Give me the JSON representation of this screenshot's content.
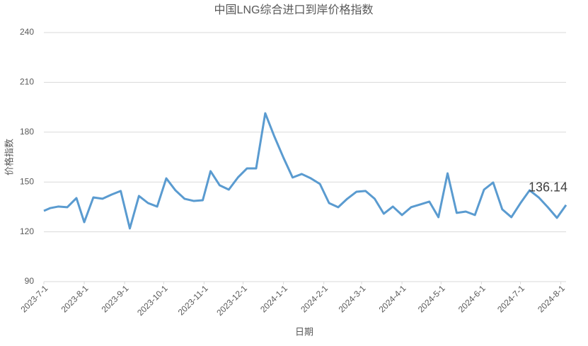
{
  "chart_data": {
    "type": "line",
    "title": "中国LNG综合进口到岸价格指数",
    "x_label": "日期",
    "y_label": "价格指数",
    "x": [
      "2023-7-1",
      "2023-7-6",
      "2023-7-12",
      "2023-7-19",
      "2023-7-26",
      "2023-8-1",
      "2023-8-8",
      "2023-8-15",
      "2023-8-22",
      "2023-8-29",
      "2023-9-5",
      "2023-9-12",
      "2023-9-19",
      "2023-9-26",
      "2023-10-3",
      "2023-10-10",
      "2023-10-17",
      "2023-10-24",
      "2023-10-31",
      "2023-11-6",
      "2023-11-13",
      "2023-11-20",
      "2023-11-27",
      "2023-12-4",
      "2023-12-11",
      "2023-12-18",
      "2023-12-25",
      "2024-1-1",
      "2024-1-8",
      "2024-1-15",
      "2024-1-22",
      "2024-1-29",
      "2024-2-5",
      "2024-2-12",
      "2024-2-19",
      "2024-2-26",
      "2024-3-4",
      "2024-3-11",
      "2024-3-18",
      "2024-3-25",
      "2024-4-1",
      "2024-4-8",
      "2024-4-15",
      "2024-4-22",
      "2024-4-29",
      "2024-5-6",
      "2024-5-13",
      "2024-5-20",
      "2024-5-27",
      "2024-6-3",
      "2024-6-10",
      "2024-6-17",
      "2024-6-24",
      "2024-7-1",
      "2024-7-8",
      "2024-7-15",
      "2024-7-22",
      "2024-7-29",
      "2024-8-5"
    ],
    "series": [
      {
        "name": "价格指数",
        "color": "#5a9bd0",
        "values": [
          132.6,
          134.3,
          135.2,
          134.8,
          140.3,
          125.8,
          140.7,
          139.9,
          142.4,
          144.6,
          122.0,
          141.6,
          137.3,
          135.2,
          152.2,
          145.0,
          139.9,
          138.6,
          139.0,
          156.5,
          148.0,
          145.4,
          152.7,
          158.2,
          158.2,
          191.4,
          177.4,
          164.6,
          152.7,
          154.8,
          152.2,
          148.8,
          137.3,
          134.8,
          139.9,
          144.1,
          144.6,
          139.9,
          130.9,
          135.2,
          130.1,
          134.8,
          136.5,
          138.2,
          128.8,
          155.2,
          131.4,
          132.2,
          130.1,
          145.4,
          149.7,
          133.5,
          128.8,
          137.3,
          145.0,
          140.7,
          134.8,
          128.4,
          136.14
        ]
      }
    ],
    "xlim": [
      "2023-7-1",
      "2024-8-5"
    ],
    "xticks": [
      "2023-7-1",
      "2023-8-1",
      "2023-9-1",
      "2023-10-1",
      "2023-11-1",
      "2023-12-1",
      "2024-1-1",
      "2024-2-1",
      "2024-3-1",
      "2024-4-1",
      "2024-5-1",
      "2024-6-1",
      "2024-7-1",
      "2024-8-1"
    ],
    "ylim": [
      90,
      240
    ],
    "yticks": [
      90,
      120,
      150,
      180,
      210,
      240
    ],
    "grid": true
  }
}
